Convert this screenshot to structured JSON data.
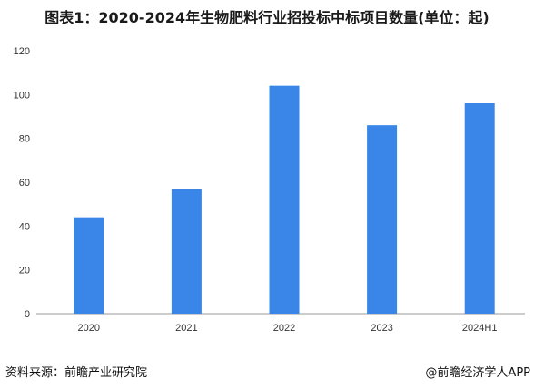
{
  "title": "图表1：2020-2024年生物肥料行业招投标中标项目数量(单位：起)",
  "source": "资料来源：前瞻产业研究院",
  "brand": "@前瞻经济学人APP",
  "colors": {
    "bar": "#3a86e8",
    "axis": "#999999"
  },
  "chart_data": {
    "type": "bar",
    "title": "图表1：2020-2024年生物肥料行业招投标中标项目数量(单位：起)",
    "categories": [
      "2020",
      "2021",
      "2022",
      "2023",
      "2024H1"
    ],
    "values": [
      44,
      57,
      104,
      86,
      96
    ],
    "ylim": [
      0,
      120
    ],
    "yticks": [
      0,
      20,
      40,
      60,
      80,
      100,
      120
    ],
    "grid": false
  }
}
